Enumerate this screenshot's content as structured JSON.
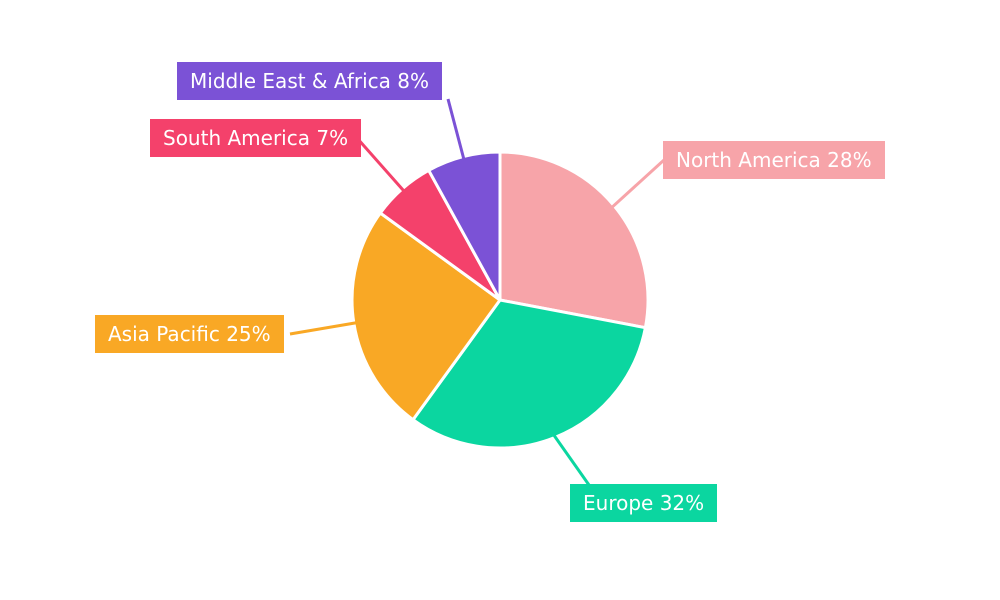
{
  "chart_data": {
    "type": "pie",
    "title": "",
    "categories": [
      "North America",
      "Europe",
      "Asia Pacific",
      "South America",
      "Middle East & Africa"
    ],
    "values": [
      28,
      32,
      25,
      7,
      8
    ],
    "unit": "%",
    "labels": [
      "North America 28%",
      "Europe 32%",
      "Asia Pacific 25%",
      "South America 7%",
      "Middle East & Africa 8%"
    ],
    "colors": [
      "#F7A4A9",
      "#0BD6A0",
      "#F9A825",
      "#F4416B",
      "#7B52D6"
    ],
    "slice_border_color": "#FFFFFF",
    "legend_position": "none",
    "label_style": "callout-boxes-with-leader-lines",
    "background": "#FFFFFF"
  }
}
